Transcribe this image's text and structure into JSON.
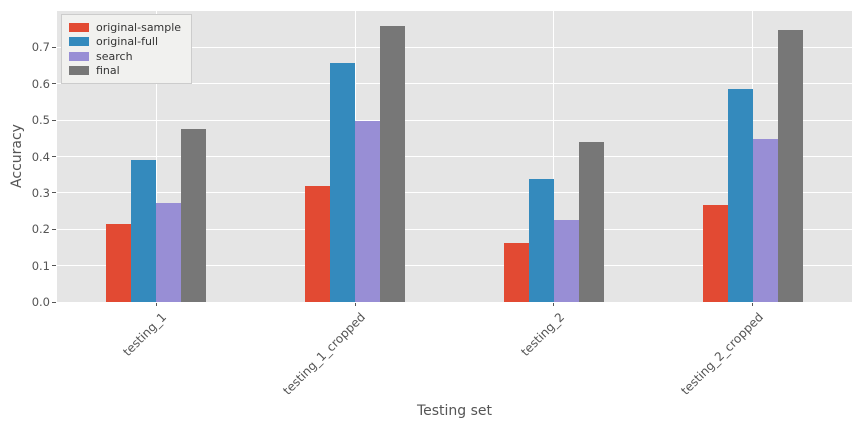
{
  "chart_data": {
    "type": "bar",
    "title": "",
    "xlabel": "Testing set",
    "ylabel": "Accuracy",
    "categories": [
      "testing_1",
      "testing_1_cropped",
      "testing_2",
      "testing_2_cropped"
    ],
    "series": [
      {
        "name": "original-sample",
        "color": "#E24A33",
        "values": [
          0.215,
          0.318,
          0.163,
          0.268
        ]
      },
      {
        "name": "original-full",
        "color": "#348ABD",
        "values": [
          0.391,
          0.656,
          0.338,
          0.586
        ]
      },
      {
        "name": "search",
        "color": "#988ED5",
        "values": [
          0.271,
          0.497,
          0.226,
          0.449
        ]
      },
      {
        "name": "final",
        "color": "#777777",
        "values": [
          0.476,
          0.76,
          0.441,
          0.749
        ]
      }
    ],
    "ylim": [
      0,
      0.8
    ],
    "yticks": [
      0.0,
      0.1,
      0.2,
      0.3,
      0.4,
      0.5,
      0.6,
      0.7
    ],
    "ytick_labels": [
      "0.0",
      "0.1",
      "0.2",
      "0.3",
      "0.4",
      "0.5",
      "0.6",
      "0.7"
    ],
    "grid": true,
    "legend": {
      "position": "upper-left",
      "entries": [
        "original-sample",
        "original-full",
        "search",
        "final"
      ]
    },
    "colors": {
      "figure_bg": "#FFFFFF",
      "axes_bg": "#E5E5E5",
      "grid": "#FFFFFF",
      "text": "#555555"
    }
  }
}
